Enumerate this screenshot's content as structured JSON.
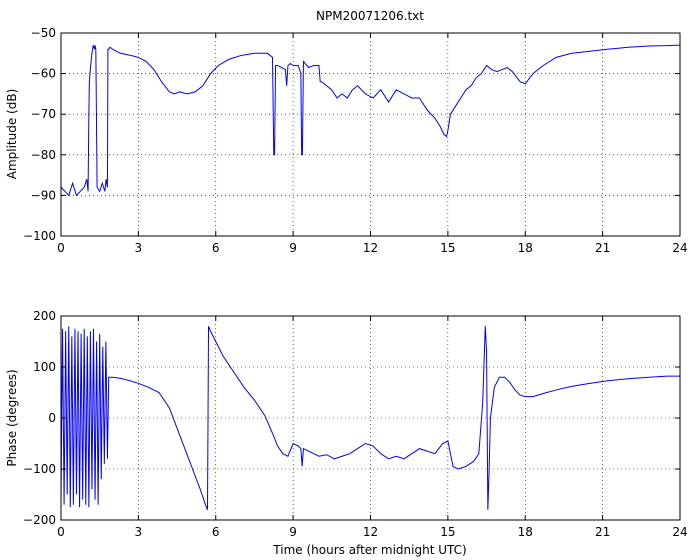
{
  "chart_data": [
    {
      "type": "line",
      "title": "NPM20071206.txt",
      "xlabel": "",
      "ylabel": "Amplitude (dB)",
      "xlim": [
        0,
        24
      ],
      "ylim": [
        -100,
        -50
      ],
      "xticks": [
        0,
        3,
        6,
        9,
        12,
        15,
        18,
        21,
        24
      ],
      "yticks": [
        -100,
        -90,
        -80,
        -70,
        -60,
        -50
      ],
      "xtick_labels": [
        "0",
        "3",
        "6",
        "9",
        "12",
        "15",
        "18",
        "21",
        "24"
      ],
      "ytick_labels": [
        "−100",
        "−90",
        "−80",
        "−70",
        "−60",
        "−50"
      ],
      "grid": true,
      "line_color": "#0000ff",
      "series": [
        {
          "x": [
            0,
            0.15,
            0.3,
            0.45,
            0.6,
            0.75,
            0.9,
            1.0,
            1.05,
            1.08,
            1.1,
            1.15,
            1.2,
            1.25,
            1.3,
            1.32,
            1.35,
            1.4,
            1.5,
            1.6,
            1.7,
            1.75,
            1.8,
            1.82,
            1.85,
            1.9,
            2.0,
            2.3,
            2.7,
            3.0,
            3.3,
            3.6,
            3.9,
            4.2,
            4.4,
            4.6,
            4.9,
            5.2,
            5.5,
            5.8,
            6.1,
            6.5,
            7.0,
            7.5,
            8.0,
            8.2,
            8.25,
            8.28,
            8.32,
            8.4,
            8.7,
            8.75,
            8.8,
            8.9,
            9.0,
            9.2,
            9.3,
            9.33,
            9.36,
            9.4,
            9.6,
            9.8,
            10.0,
            10.05,
            10.1,
            10.3,
            10.5,
            10.7,
            10.9,
            11.1,
            11.3,
            11.5,
            11.8,
            12.1,
            12.4,
            12.7,
            13.0,
            13.3,
            13.6,
            13.9,
            14.2,
            14.5,
            14.7,
            14.85,
            14.95,
            15.0,
            15.1,
            15.3,
            15.5,
            15.7,
            15.9,
            16.1,
            16.3,
            16.5,
            16.7,
            16.9,
            17.1,
            17.3,
            17.5,
            17.8,
            18.0,
            18.3,
            18.7,
            19.2,
            19.8,
            20.5,
            21.2,
            22.0,
            22.8,
            23.5,
            24
          ],
          "y": [
            -88,
            -89,
            -90,
            -87,
            -90,
            -89,
            -88,
            -86,
            -89,
            -70,
            -62,
            -58,
            -55,
            -53,
            -54,
            -53,
            -54,
            -88,
            -89,
            -87,
            -89,
            -86,
            -88,
            -54,
            -54,
            -53.5,
            -54,
            -55,
            -55.5,
            -56,
            -57,
            -59,
            -62,
            -64.5,
            -65,
            -64.5,
            -65,
            -64.5,
            -63,
            -60,
            -58,
            -56.5,
            -55.5,
            -55,
            -55,
            -56,
            -80,
            -80,
            -58,
            -58,
            -59,
            -63,
            -58,
            -57.5,
            -58,
            -58,
            -60,
            -80,
            -80,
            -57,
            -58.5,
            -58,
            -58,
            -62,
            -62,
            -63,
            -64,
            -66,
            -65,
            -66,
            -64,
            -63,
            -65,
            -66,
            -64,
            -67,
            -64,
            -65,
            -66,
            -66,
            -69,
            -71,
            -73,
            -75,
            -75.5,
            -74,
            -70,
            -68,
            -66,
            -64,
            -63,
            -61,
            -60,
            -58,
            -59,
            -59.5,
            -59,
            -58.5,
            -59.5,
            -62,
            -62.5,
            -60,
            -58,
            -56,
            -55,
            -54.5,
            -54,
            -53.5,
            -53.2,
            -53.1,
            -53
          ]
        }
      ]
    },
    {
      "type": "line",
      "title": "",
      "xlabel": "Time (hours after midnight UTC)",
      "ylabel": "Phase (degrees)",
      "xlim": [
        0,
        24
      ],
      "ylim": [
        -200,
        200
      ],
      "xticks": [
        0,
        3,
        6,
        9,
        12,
        15,
        18,
        21,
        24
      ],
      "yticks": [
        -200,
        -100,
        0,
        100,
        200
      ],
      "xtick_labels": [
        "0",
        "3",
        "6",
        "9",
        "12",
        "15",
        "18",
        "21",
        "24"
      ],
      "ytick_labels": [
        "−200",
        "−100",
        "0",
        "100",
        "200"
      ],
      "grid": true,
      "line_color": "#0000ff",
      "series": [
        {
          "x": [
            0,
            0.06,
            0.12,
            0.18,
            0.24,
            0.3,
            0.36,
            0.42,
            0.48,
            0.54,
            0.6,
            0.66,
            0.72,
            0.78,
            0.84,
            0.9,
            0.96,
            1.02,
            1.08,
            1.14,
            1.2,
            1.26,
            1.32,
            1.38,
            1.44,
            1.5,
            1.56,
            1.62,
            1.68,
            1.74,
            1.8,
            1.85,
            2.0,
            2.3,
            2.6,
            3.0,
            3.4,
            3.8,
            4.2,
            4.5,
            4.8,
            5.1,
            5.4,
            5.6,
            5.68,
            5.72,
            5.8,
            6.0,
            6.3,
            6.7,
            7.1,
            7.5,
            7.9,
            8.2,
            8.4,
            8.6,
            8.8,
            9.0,
            9.2,
            9.3,
            9.35,
            9.4,
            9.6,
            9.8,
            10.0,
            10.3,
            10.6,
            10.9,
            11.2,
            11.5,
            11.8,
            12.1,
            12.4,
            12.7,
            13.0,
            13.3,
            13.6,
            13.9,
            14.2,
            14.5,
            14.8,
            15.0,
            15.2,
            15.4,
            15.7,
            16.0,
            16.2,
            16.35,
            16.45,
            16.5,
            16.55,
            16.6,
            16.65,
            16.8,
            17.0,
            17.2,
            17.4,
            17.6,
            17.8,
            18.0,
            18.3,
            18.7,
            19.2,
            19.8,
            20.5,
            21.2,
            22.0,
            22.8,
            23.5,
            24
          ],
          "y": [
            -160,
            175,
            -170,
            170,
            -150,
            180,
            -175,
            160,
            -170,
            175,
            -150,
            170,
            -175,
            165,
            -160,
            175,
            -170,
            160,
            -175,
            170,
            -140,
            175,
            -160,
            150,
            -170,
            165,
            -120,
            140,
            -90,
            150,
            -80,
            80,
            80,
            78,
            74,
            68,
            60,
            50,
            20,
            -20,
            -60,
            -100,
            -140,
            -170,
            -180,
            180,
            170,
            150,
            120,
            90,
            60,
            35,
            5,
            -30,
            -55,
            -70,
            -75,
            -50,
            -55,
            -60,
            -95,
            -60,
            -65,
            -70,
            -75,
            -72,
            -80,
            -75,
            -70,
            -60,
            -50,
            -55,
            -70,
            -80,
            -75,
            -80,
            -70,
            -60,
            -65,
            -70,
            -50,
            -45,
            -95,
            -100,
            -95,
            -85,
            -70,
            30,
            180,
            130,
            -180,
            -100,
            0,
            60,
            80,
            80,
            70,
            55,
            45,
            42,
            42,
            48,
            55,
            62,
            68,
            73,
            77,
            80,
            82,
            82
          ]
        }
      ]
    }
  ]
}
